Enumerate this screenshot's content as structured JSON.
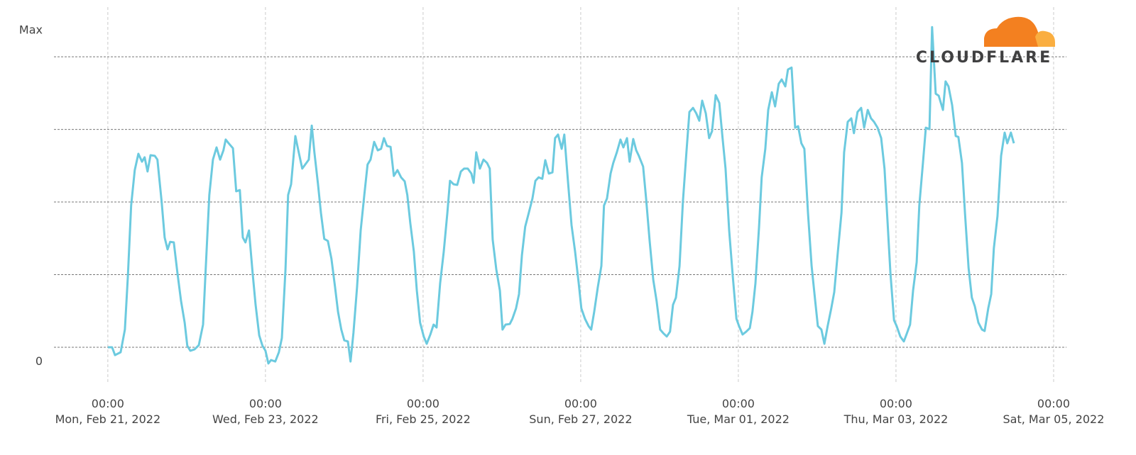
{
  "chart_data": {
    "type": "line",
    "logo": "CLOUDFLARE",
    "color": "#6ccadf",
    "xlim": [
      -16.4,
      291.9
    ],
    "ylim": [
      -12.2,
      117.1
    ],
    "yticks": [
      0,
      {
        "value": 114,
        "label": "Max"
      }
    ],
    "ygrid": [
      0,
      25,
      50,
      75,
      100
    ],
    "xticks": [
      {
        "value": 0,
        "label": [
          "00:00",
          "Mon, Feb 21, 2022"
        ]
      },
      {
        "value": 48,
        "label": [
          "00:00",
          "Wed, Feb 23, 2022"
        ]
      },
      {
        "value": 96,
        "label": [
          "00:00",
          "Fri, Feb 25, 2022"
        ]
      },
      {
        "value": 144,
        "label": [
          "00:00",
          "Sun, Feb 27, 2022"
        ]
      },
      {
        "value": 192,
        "label": [
          "00:00",
          "Tue, Mar 01, 2022"
        ]
      },
      {
        "value": 240,
        "label": [
          "00:00",
          "Thu, Mar 03, 2022"
        ]
      },
      {
        "value": 288,
        "label": [
          "00:00",
          "Sat, Mar 05, 2022"
        ]
      }
    ],
    "x": [
      0,
      1.3,
      2.2,
      3.9,
      5.2,
      6.1,
      7.1,
      8.2,
      9.3,
      10.4,
      11.2,
      12.1,
      13.0,
      14.3,
      15.1,
      16.4,
      17.3,
      18.2,
      19.0,
      20.1,
      21.2,
      22.3,
      23.4,
      24.2,
      25.1,
      26.4,
      27.7,
      29.0,
      29.8,
      30.9,
      32.0,
      33.1,
      34.2,
      35.2,
      35.9,
      36.8,
      38.1,
      39.1,
      40.2,
      41.1,
      41.9,
      43.0,
      44.1,
      45.0,
      46.1,
      47.1,
      48.0,
      48.9,
      49.7,
      51.0,
      52.1,
      53.0,
      54.1,
      54.9,
      55.8,
      57.1,
      57.9,
      59.2,
      60.1,
      61.2,
      62.1,
      62.9,
      64.0,
      64.9,
      65.9,
      67.0,
      68.1,
      69.2,
      70.1,
      71.1,
      72.0,
      73.1,
      73.9,
      74.8,
      75.9,
      77.0,
      78.1,
      79.1,
      80.0,
      81.1,
      82.2,
      83.2,
      84.1,
      85.0,
      86.1,
      87.1,
      88.2,
      89.3,
      90.4,
      91.2,
      92.1,
      93.2,
      94.1,
      95.1,
      96.2,
      97.1,
      98.2,
      99.2,
      100.1,
      101.2,
      102.3,
      103.4,
      104.2,
      105.3,
      106.4,
      107.5,
      108.5,
      109.6,
      110.7,
      111.4,
      112.2,
      113.3,
      114.4,
      115.5,
      116.3,
      117.2,
      118.3,
      119.4,
      120.2,
      121.1,
      122.4,
      123.2,
      124.3,
      125.2,
      126.1,
      127.1,
      128.2,
      129.3,
      130.2,
      131.2,
      132.3,
      133.2,
      134.3,
      135.4,
      136.2,
      137.1,
      138.2,
      139.0,
      140.1,
      141.2,
      142.3,
      143.4,
      144.2,
      145.3,
      146.4,
      147.2,
      148.1,
      149.2,
      150.3,
      151.1,
      152.0,
      153.1,
      153.9,
      155.0,
      156.1,
      157.0,
      158.1,
      158.9,
      160.0,
      160.9,
      161.7,
      163.0,
      163.9,
      165.0,
      166.1,
      167.1,
      168.2,
      169.1,
      170.2,
      171.2,
      172.1,
      173.0,
      174.1,
      175.1,
      176.2,
      177.1,
      178.2,
      179.2,
      180.1,
      181.0,
      182.1,
      183.1,
      184.0,
      185.1,
      186.2,
      187.2,
      188.1,
      189.2,
      190.3,
      191.4,
      192.2,
      193.3,
      194.4,
      195.5,
      196.3,
      197.2,
      198.3,
      199.1,
      200.2,
      201.1,
      202.2,
      203.2,
      204.3,
      205.2,
      206.3,
      207.1,
      208.2,
      209.3,
      210.2,
      211.2,
      212.1,
      213.2,
      214.3,
      215.4,
      216.2,
      217.3,
      218.2,
      219.2,
      220.3,
      221.2,
      222.3,
      223.4,
      224.2,
      225.3,
      226.4,
      227.2,
      228.3,
      229.4,
      230.3,
      231.4,
      232.4,
      233.3,
      234.4,
      235.5,
      236.5,
      237.4,
      238.3,
      239.4,
      240.2,
      241.3,
      242.4,
      243.2,
      244.3,
      245.2,
      246.3,
      247.1,
      248.2,
      249.1,
      250.2,
      251.0,
      252.1,
      253.0,
      254.3,
      255.1,
      256.0,
      257.1,
      258.2,
      259.0,
      260.1,
      261.0,
      262.1,
      263.1,
      264.0,
      265.1,
      266.2,
      267.0,
      268.1,
      269.0,
      269.8,
      270.9,
      272.0,
      273.1,
      273.9,
      275.0,
      275.9
    ],
    "values": [
      0,
      0,
      -2.7,
      -1.7,
      6.1,
      24.4,
      48.8,
      61,
      66.6,
      63.9,
      65.4,
      60.5,
      66.1,
      65.9,
      64.6,
      50,
      37.8,
      33.7,
      36.3,
      36.1,
      25.6,
      15.9,
      8.5,
      0.5,
      -1.2,
      -0.7,
      0.7,
      7.8,
      26.8,
      52.4,
      64.6,
      68.8,
      64.6,
      67.8,
      71.5,
      70.2,
      68.5,
      53.7,
      54.1,
      37.8,
      36.1,
      40.2,
      25.6,
      14.6,
      4.1,
      0.5,
      -1.2,
      -5.6,
      -4.4,
      -4.9,
      -1.7,
      3.2,
      26.8,
      52.4,
      56.1,
      72.7,
      68.3,
      61.5,
      62.9,
      64.6,
      76.3,
      67.1,
      56.1,
      46.3,
      37.3,
      36.6,
      30.5,
      20.7,
      12.2,
      6.1,
      2.4,
      2.0,
      -4.9,
      4.9,
      20.7,
      40.2,
      52.4,
      62.9,
      64.6,
      70.7,
      67.8,
      68.3,
      72.0,
      69.3,
      69.0,
      59.0,
      61.0,
      58.5,
      57.1,
      52.4,
      42.7,
      32.9,
      19.5,
      8.5,
      3.7,
      1.2,
      4.4,
      7.8,
      6.8,
      22.0,
      32.9,
      46.3,
      57.3,
      56.1,
      55.9,
      60.5,
      61.5,
      61.5,
      59.8,
      56.6,
      67.1,
      61.5,
      64.6,
      63.4,
      61.5,
      37.1,
      26.8,
      19.5,
      6.1,
      7.8,
      8.0,
      9.8,
      13.4,
      18.3,
      31.7,
      41.5,
      46.3,
      51.2,
      57.3,
      58.5,
      58.0,
      64.4,
      59.8,
      60.2,
      72.0,
      73.2,
      68.3,
      73.2,
      57.3,
      42.0,
      32.9,
      22.0,
      13.4,
      9.8,
      7.3,
      6.1,
      12.2,
      20.7,
      28.0,
      48.8,
      51.2,
      59.8,
      63.4,
      67.1,
      71.5,
      68.8,
      72.0,
      63.9,
      71.7,
      67.8,
      65.9,
      62.2,
      51.2,
      36.6,
      23.2,
      15.9,
      6.1,
      4.9,
      3.7,
      5.4,
      14.6,
      17.1,
      28.0,
      50.0,
      67.1,
      81.0,
      82.4,
      80.5,
      78.0,
      84.9,
      80.5,
      72.0,
      74.4,
      86.8,
      84.1,
      72.0,
      61.5,
      40.2,
      24.4,
      9.8,
      7.3,
      4.4,
      5.4,
      6.6,
      12.2,
      22.0,
      41.5,
      58.5,
      68.3,
      81.7,
      87.8,
      82.9,
      90.7,
      92.2,
      89.8,
      95.6,
      96.3,
      75.6,
      76.1,
      70.2,
      68.3,
      46.3,
      28.0,
      15.9,
      7.3,
      6.1,
      1.2,
      7.3,
      13.4,
      19.0,
      32.9,
      46.3,
      67.1,
      77.6,
      78.8,
      73.7,
      81.0,
      82.4,
      75.6,
      81.7,
      78.8,
      77.6,
      75.6,
      72.0,
      61.5,
      43.9,
      25.6,
      9.3,
      7.3,
      3.7,
      2.0,
      4.4,
      7.8,
      19.5,
      29.3,
      48.8,
      63.4,
      75.6,
      75.1,
      110.2,
      87.3,
      86.6,
      81.7,
      91.5,
      89.8,
      83.4,
      72.7,
      72.4,
      63.4,
      46.3,
      27.3,
      17.1,
      14.1,
      8.5,
      6.1,
      5.6,
      13.4,
      18.3,
      34.1,
      45.1,
      65.9,
      73.9,
      70.2,
      73.9,
      70.2
    ]
  }
}
